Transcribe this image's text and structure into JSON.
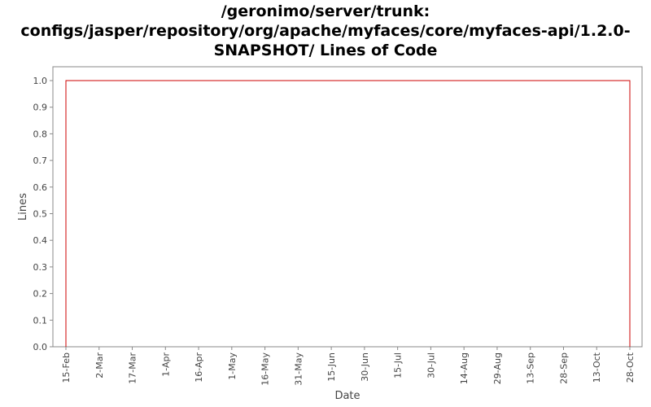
{
  "chart_data": {
    "type": "line",
    "title_lines": [
      "/geronimo/server/trunk:",
      "configs/jasper/repository/org/apache/myfaces/core/myfaces-api/1.2.0-",
      "SNAPSHOT/ Lines of Code"
    ],
    "xlabel": "Date",
    "ylabel": "Lines",
    "ylim": [
      0,
      1.0
    ],
    "y_ticks": [
      "0.0",
      "0.1",
      "0.2",
      "0.3",
      "0.4",
      "0.5",
      "0.6",
      "0.7",
      "0.8",
      "0.9",
      "1.0"
    ],
    "x_ticks": [
      "15-Feb",
      "2-Mar",
      "17-Mar",
      "1-Apr",
      "16-Apr",
      "1-May",
      "16-May",
      "31-May",
      "15-Jun",
      "30-Jun",
      "15-Jul",
      "30-Jul",
      "14-Aug",
      "29-Aug",
      "13-Sep",
      "28-Sep",
      "13-Oct",
      "28-Oct"
    ],
    "series": [
      {
        "color": "#cc0000",
        "points": [
          {
            "x": "15-Feb",
            "y": 0
          },
          {
            "x": "15-Feb",
            "y": 1.0
          },
          {
            "x": "28-Oct",
            "y": 1.0
          },
          {
            "x": "28-Oct",
            "y": 0
          }
        ]
      }
    ],
    "grid": false,
    "legend": "none"
  }
}
